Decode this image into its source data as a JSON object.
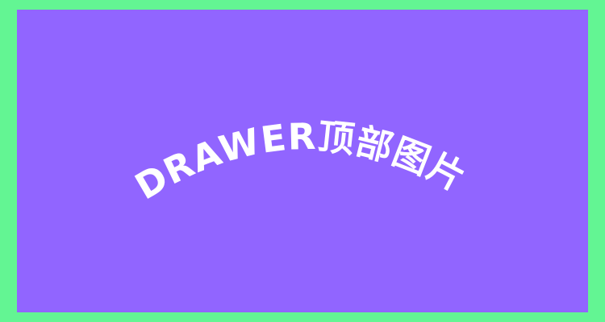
{
  "placeholder": {
    "label": "DRAWER顶部图片",
    "background_color": "#9165ff",
    "border_color": "#63f593",
    "text_color": "#ffffff"
  }
}
